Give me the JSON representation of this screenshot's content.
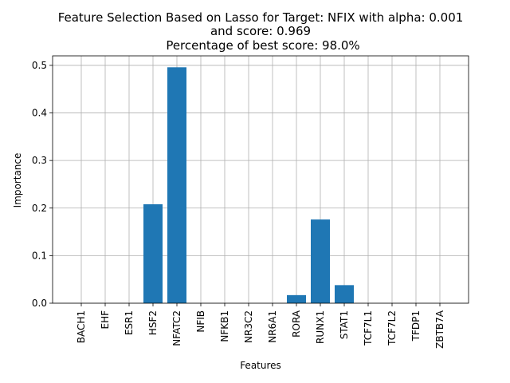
{
  "chart_data": {
    "type": "bar",
    "title_lines": [
      "Feature Selection Based on Lasso for Target: NFIX with alpha: 0.001",
      "and score: 0.969",
      "Percentage of best score: 98.0%"
    ],
    "xlabel": "Features",
    "ylabel": "Importance",
    "categories": [
      "BACH1",
      "EHF",
      "ESR1",
      "HSF2",
      "NFATC2",
      "NFIB",
      "NFKB1",
      "NR3C2",
      "NR6A1",
      "RORA",
      "RUNX1",
      "STAT1",
      "TCF7L1",
      "TCF7L2",
      "TFDP1",
      "ZBTB7A"
    ],
    "values": [
      0,
      0,
      0,
      0.208,
      0.496,
      0,
      0,
      0,
      0,
      0.017,
      0.176,
      0.038,
      0,
      0,
      0,
      0
    ],
    "ylim": [
      0,
      0.52
    ],
    "yticks": [
      "0.0",
      "0.1",
      "0.2",
      "0.3",
      "0.4",
      "0.5"
    ],
    "grid": true,
    "bar_color": "#1f77b4"
  }
}
